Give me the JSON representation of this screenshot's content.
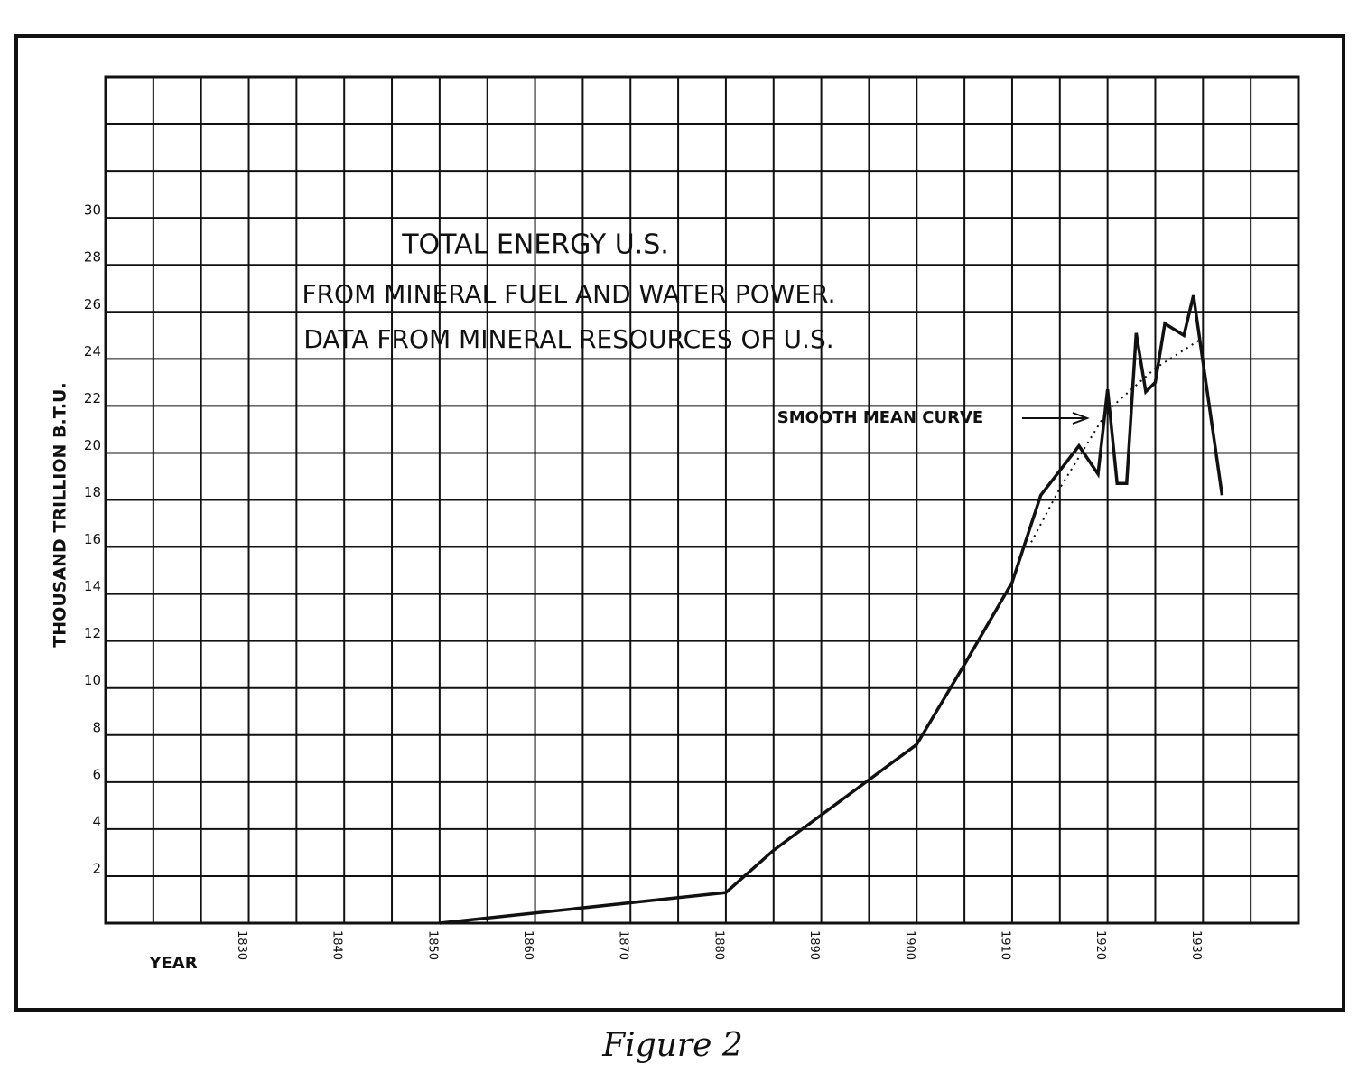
{
  "chart_data": {
    "type": "line",
    "title_lines": [
      "TOTAL ENERGY U.S.",
      "FROM MINERAL FUEL AND WATER POWER.",
      "DATA FROM MINERAL RESOURCES OF U.S."
    ],
    "y_label": "THOUSAND TRILLION B.T.U.",
    "x_label": "YEAR",
    "caption": "Figure 2",
    "annotation": "SMOOTH MEAN CURVE",
    "xlim": [
      1815,
      1940
    ],
    "ylim": [
      0,
      36
    ],
    "xticks": [
      1830,
      1840,
      1850,
      1860,
      1870,
      1880,
      1890,
      1900,
      1910,
      1920,
      1930
    ],
    "yticks": [
      2,
      4,
      6,
      8,
      10,
      12,
      14,
      16,
      18,
      20,
      22,
      24,
      26,
      28,
      30
    ],
    "grid": true,
    "series": [
      {
        "color": "#111111",
        "style": "solid",
        "x": [
          1850,
          1880,
          1885,
          1890,
          1895,
          1900,
          1905,
          1910,
          1913,
          1917,
          1919,
          1920,
          1921,
          1922,
          1923,
          1924,
          1925,
          1926,
          1928,
          1929,
          1932
        ],
        "values": [
          0,
          1.3,
          3.1,
          4.6,
          6.1,
          7.6,
          11,
          14.5,
          18.2,
          20.3,
          19.1,
          22.7,
          18.7,
          18.7,
          25.1,
          22.6,
          23,
          25.5,
          25,
          26.7,
          18.2
        ]
      },
      {
        "color": "#111111",
        "style": "dotted",
        "x": [
          1912,
          1915,
          1920,
          1925,
          1930
        ],
        "values": [
          16.2,
          18.5,
          21.8,
          23.6,
          24.9
        ]
      }
    ]
  }
}
